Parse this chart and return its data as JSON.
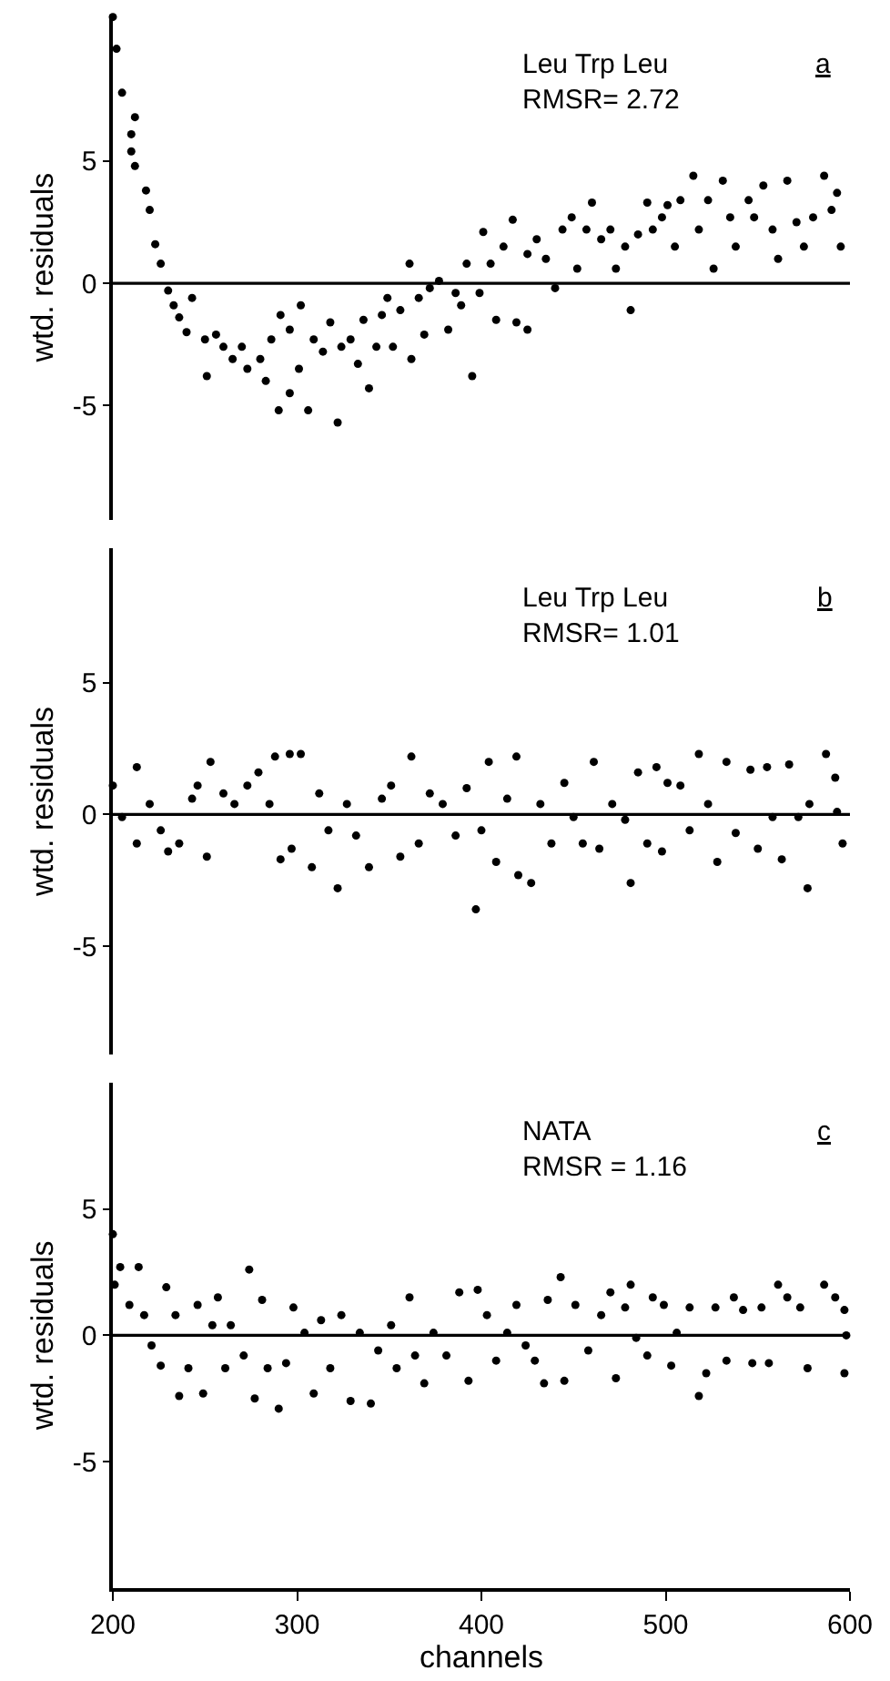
{
  "chart_data": [
    {
      "type": "scatter",
      "ylabel": "wtd. residuals",
      "annotations": [
        "Leu Trp Leu\nRMSR= 2.72",
        "a"
      ],
      "xlim": [
        200,
        600
      ],
      "ylim": [
        -9.7,
        11
      ],
      "yticks": [
        5,
        0,
        -5
      ],
      "tick_labels": "y",
      "marker": "circle",
      "color": "#000000",
      "ref_lines": [
        {
          "axis": "y",
          "value": 0,
          "color": "#000000"
        }
      ],
      "x": [
        200,
        202,
        205,
        212,
        210,
        210,
        212,
        218,
        220,
        223,
        226,
        230,
        233,
        236,
        240,
        243,
        250,
        251,
        256,
        260,
        265,
        270,
        273,
        280,
        283,
        286,
        290,
        291,
        296,
        296,
        301,
        302,
        306,
        309,
        314,
        318,
        322,
        324,
        329,
        333,
        336,
        339,
        343,
        346,
        349,
        352,
        356,
        361,
        362,
        366,
        369,
        372,
        377,
        382,
        386,
        389,
        392,
        395,
        399,
        401,
        405,
        408,
        412,
        417,
        419,
        425,
        425,
        430,
        435,
        440,
        444,
        449,
        452,
        457,
        460,
        465,
        470,
        473,
        478,
        481,
        485,
        490,
        493,
        498,
        501,
        505,
        508,
        515,
        518,
        523,
        526,
        531,
        535,
        538,
        545,
        548,
        553,
        558,
        561,
        566,
        571,
        575,
        580,
        586,
        590,
        593,
        595
      ],
      "values": [
        10.9,
        9.6,
        7.8,
        6.8,
        6.1,
        5.4,
        4.8,
        3.8,
        3.0,
        1.6,
        0.8,
        -0.3,
        -0.9,
        -1.4,
        -2.0,
        -0.6,
        -2.3,
        -3.8,
        -2.1,
        -2.6,
        -3.1,
        -2.6,
        -3.5,
        -3.1,
        -4.0,
        -2.3,
        -5.2,
        -1.3,
        -1.9,
        -4.5,
        -3.5,
        -0.9,
        -5.2,
        -2.3,
        -2.8,
        -1.6,
        -5.7,
        -2.6,
        -2.3,
        -3.3,
        -1.5,
        -4.3,
        -2.6,
        -1.3,
        -0.6,
        -2.6,
        -1.1,
        0.8,
        -3.1,
        -0.6,
        -2.1,
        -0.2,
        0.1,
        -1.9,
        -0.4,
        -0.9,
        0.8,
        -3.8,
        -0.4,
        2.1,
        0.8,
        -1.5,
        1.5,
        2.6,
        -1.6,
        -1.9,
        1.2,
        1.8,
        1.0,
        -0.2,
        2.2,
        2.7,
        0.6,
        2.2,
        3.3,
        1.8,
        2.2,
        0.6,
        1.5,
        -1.1,
        2.0,
        3.3,
        2.2,
        2.7,
        3.2,
        1.5,
        3.4,
        4.4,
        2.2,
        3.4,
        0.6,
        4.2,
        2.7,
        1.5,
        3.4,
        2.7,
        4.0,
        2.2,
        1.0,
        4.2,
        2.5,
        1.5,
        2.7,
        4.4,
        3.0,
        3.7,
        1.5
      ]
    },
    {
      "type": "scatter",
      "ylabel": "wtd. residuals",
      "annotations": [
        "Leu Trp Leu\nRMSR= 1.01",
        "b"
      ],
      "xlim": [
        200,
        600
      ],
      "ylim": [
        -9.1,
        10.1
      ],
      "yticks": [
        5,
        0,
        -5
      ],
      "tick_labels": "y",
      "marker": "circle",
      "color": "#000000",
      "ref_lines": [
        {
          "axis": "y",
          "value": 0,
          "color": "#000000"
        }
      ],
      "x": [
        200,
        205,
        213,
        213,
        220,
        226,
        230,
        236,
        243,
        246,
        251,
        253,
        260,
        266,
        273,
        279,
        285,
        288,
        291,
        296,
        297,
        302,
        308,
        312,
        317,
        322,
        327,
        332,
        339,
        346,
        351,
        356,
        362,
        366,
        372,
        379,
        386,
        392,
        397,
        400,
        404,
        408,
        414,
        419,
        420,
        427,
        432,
        438,
        445,
        450,
        455,
        461,
        464,
        471,
        478,
        481,
        485,
        490,
        495,
        498,
        501,
        508,
        513,
        518,
        523,
        528,
        533,
        538,
        546,
        550,
        555,
        558,
        563,
        567,
        572,
        577,
        578,
        587,
        592,
        596,
        593
      ],
      "values": [
        1.1,
        -0.1,
        1.8,
        -1.1,
        0.4,
        -0.6,
        -1.4,
        -1.1,
        0.6,
        1.1,
        -1.6,
        2.0,
        0.8,
        0.4,
        1.1,
        1.6,
        0.4,
        2.2,
        -1.7,
        2.3,
        -1.3,
        2.3,
        -2.0,
        0.8,
        -0.6,
        -2.8,
        0.4,
        -0.8,
        -2.0,
        0.6,
        1.1,
        -1.6,
        2.2,
        -1.1,
        0.8,
        0.4,
        -0.8,
        1.0,
        -3.6,
        -0.6,
        2.0,
        -1.8,
        0.6,
        2.2,
        -2.3,
        -2.6,
        0.4,
        -1.1,
        1.2,
        -0.1,
        -1.1,
        2.0,
        -1.3,
        0.4,
        -0.2,
        -2.6,
        1.6,
        -1.1,
        1.8,
        -1.4,
        1.2,
        1.1,
        -0.6,
        2.3,
        0.4,
        -1.8,
        2.0,
        -0.7,
        1.7,
        -1.3,
        1.8,
        -0.1,
        -1.7,
        1.9,
        -0.1,
        -2.8,
        0.4,
        2.3,
        1.4,
        -1.1,
        0.1
      ]
    },
    {
      "type": "scatter",
      "ylabel": "wtd. residuals",
      "xlabel": "channels",
      "annotations": [
        "NATA\nRMSR = 1.16",
        "c"
      ],
      "xlim": [
        200,
        600
      ],
      "xticks": [
        200,
        300,
        400,
        500,
        600
      ],
      "ylim": [
        -10,
        10
      ],
      "yticks": [
        5,
        0,
        -5
      ],
      "marker": "circle",
      "color": "#000000",
      "ref_lines": [
        {
          "axis": "y",
          "value": 0,
          "color": "#000000"
        }
      ],
      "x": [
        200,
        201,
        204,
        209,
        214,
        217,
        221,
        226,
        229,
        234,
        236,
        241,
        246,
        249,
        254,
        257,
        261,
        264,
        271,
        274,
        277,
        281,
        284,
        290,
        294,
        298,
        304,
        309,
        313,
        318,
        324,
        329,
        334,
        340,
        344,
        351,
        354,
        361,
        364,
        369,
        374,
        381,
        388,
        393,
        398,
        403,
        408,
        414,
        419,
        424,
        429,
        434,
        436,
        443,
        445,
        451,
        458,
        465,
        470,
        473,
        478,
        481,
        484,
        490,
        493,
        499,
        503,
        506,
        513,
        518,
        522,
        527,
        533,
        537,
        542,
        547,
        552,
        556,
        561,
        566,
        573,
        577,
        586,
        592,
        597,
        597,
        598
      ],
      "values": [
        4.0,
        2.0,
        2.7,
        1.2,
        2.7,
        0.8,
        -0.4,
        -1.2,
        1.9,
        0.8,
        -2.4,
        -1.3,
        1.2,
        -2.3,
        0.4,
        1.5,
        -1.3,
        0.4,
        -0.8,
        2.6,
        -2.5,
        1.4,
        -1.3,
        -2.9,
        -1.1,
        1.1,
        0.1,
        -2.3,
        0.6,
        -1.3,
        0.8,
        -2.6,
        0.1,
        -2.7,
        -0.6,
        0.4,
        -1.3,
        1.5,
        -0.8,
        -1.9,
        0.1,
        -0.8,
        1.7,
        -1.8,
        1.8,
        0.8,
        -1.0,
        0.1,
        1.2,
        -0.4,
        -1.0,
        -1.9,
        1.4,
        2.3,
        -1.8,
        1.2,
        -0.6,
        0.8,
        1.7,
        -1.7,
        1.1,
        2.0,
        -0.1,
        -0.8,
        1.5,
        1.2,
        -1.2,
        0.1,
        1.1,
        -2.4,
        -1.5,
        1.1,
        -1.0,
        1.5,
        1.0,
        -1.1,
        1.1,
        -1.1,
        2.0,
        1.5,
        1.1,
        -1.3,
        2.0,
        1.5,
        -1.5,
        1.0,
        0.0
      ]
    }
  ]
}
